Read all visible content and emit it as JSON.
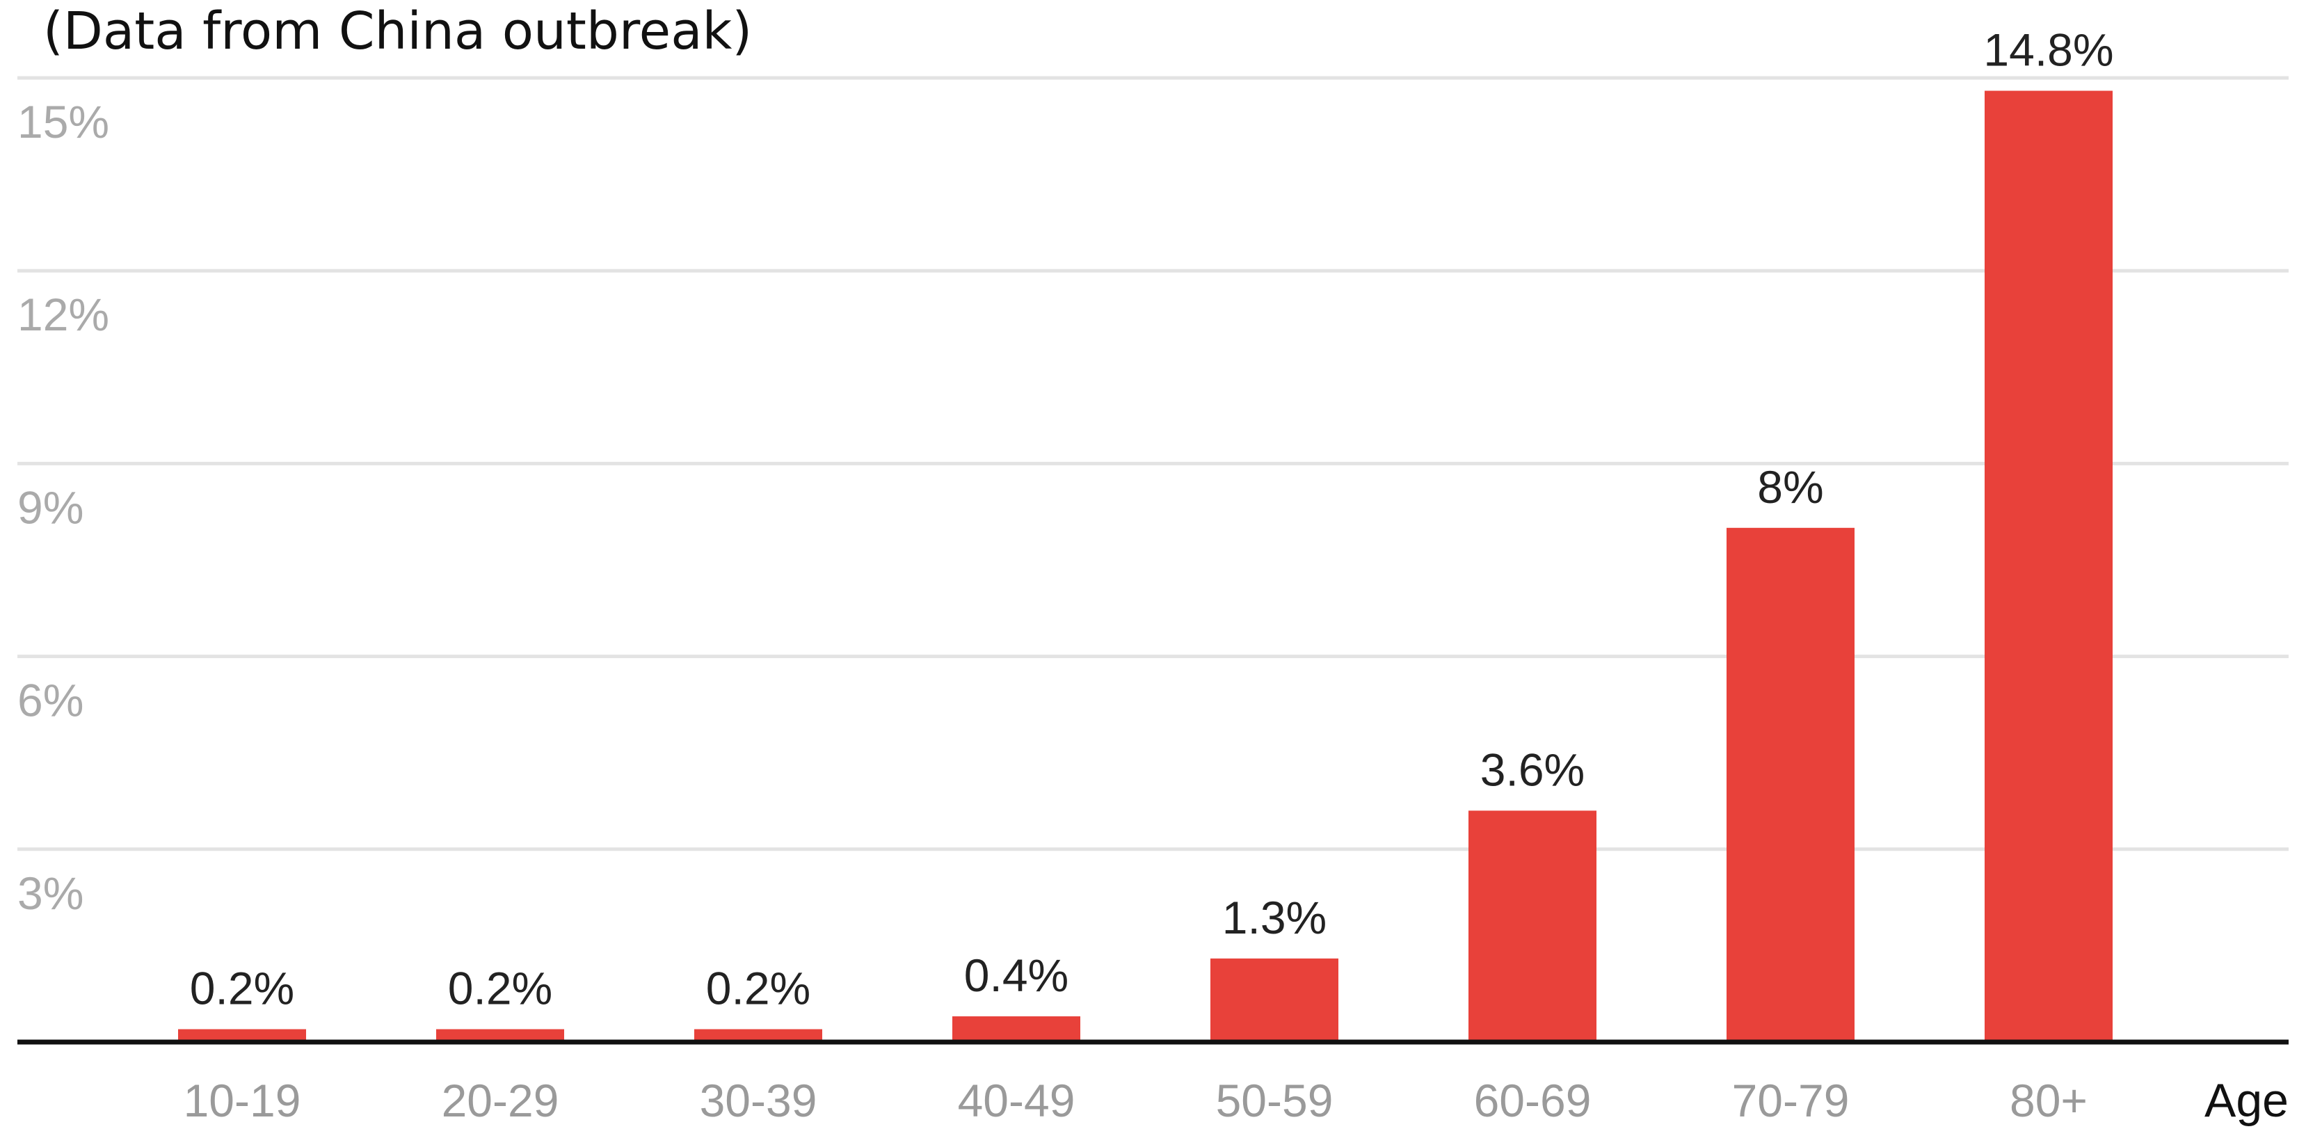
{
  "subtitle": "(Data from China outbreak)",
  "colors": {
    "bar": "#e8413a",
    "grid": "#e3e3e3",
    "axis": "#111111"
  },
  "chart_data": {
    "type": "bar",
    "title": "",
    "subtitle": "(Data from China outbreak)",
    "xlabel": "Age",
    "ylabel": "",
    "categories": [
      "10-19",
      "20-29",
      "30-39",
      "40-49",
      "50-59",
      "60-69",
      "70-79",
      "80+"
    ],
    "values": [
      0.2,
      0.2,
      0.2,
      0.4,
      1.3,
      3.6,
      8,
      14.8
    ],
    "data_labels": [
      "0.2%",
      "0.2%",
      "0.2%",
      "0.4%",
      "1.3%",
      "3.6%",
      "8%",
      "14.8%"
    ],
    "yticks": [
      3,
      6,
      9,
      12,
      15
    ],
    "ytick_labels": [
      "3%",
      "6%",
      "9%",
      "12%",
      "15%"
    ],
    "ylim": [
      0,
      15
    ],
    "grid": true,
    "legend": "none"
  }
}
